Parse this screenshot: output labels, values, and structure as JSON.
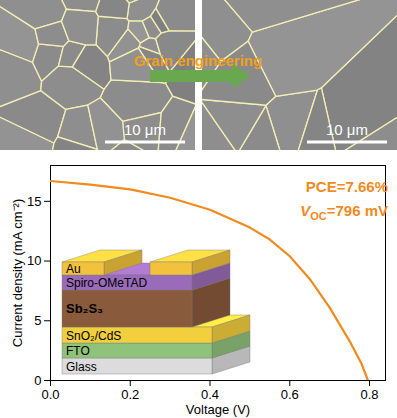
{
  "panels": {
    "text": "Grain engineering",
    "scale_bars": [
      "10 μm",
      "10 μm"
    ]
  },
  "device_stack": {
    "layers": [
      {
        "label": "Glass"
      },
      {
        "label": "FTO"
      },
      {
        "label": "SnO₂/CdS"
      },
      {
        "label": "Sb₂S₃"
      },
      {
        "label": "Spiro-OMeTAD"
      },
      {
        "label": "Au"
      }
    ]
  },
  "chart_data": {
    "type": "line",
    "x_label": "Voltage (V)",
    "y_label": "Current density (mA cm⁻²)",
    "x": [
      0,
      0.1,
      0.2,
      0.3,
      0.4,
      0.5,
      0.55,
      0.6,
      0.65,
      0.7,
      0.75,
      0.78,
      0.796
    ],
    "series": [
      {
        "color": "#f28a1e",
        "values": [
          16.7,
          16.4,
          16.0,
          15.3,
          14.3,
          12.8,
          11.8,
          10.4,
          8.5,
          6.1,
          3.3,
          1.4,
          0
        ]
      }
    ],
    "xlim": [
      0,
      0.84
    ],
    "xticks": [
      {
        "value": 0,
        "label": "0.0"
      },
      0.2,
      0.4,
      0.6,
      0.8
    ],
    "ylim": [
      0,
      18
    ],
    "yticks": [
      0,
      5,
      10,
      15
    ],
    "annotations": [
      "PCE=7.66%",
      {
        "text": "V",
        "subscript": "OC",
        "suffix": "=796 mV"
      }
    ]
  }
}
